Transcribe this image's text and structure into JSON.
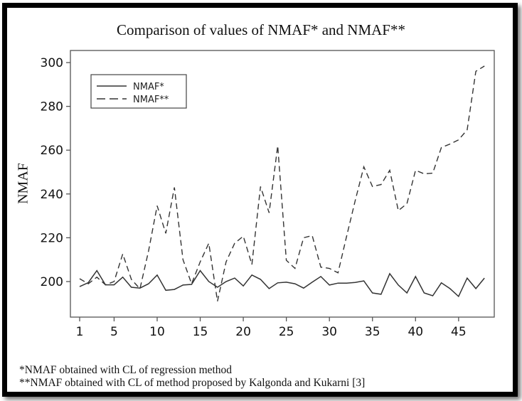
{
  "chart_data": {
    "type": "line",
    "title": "Comparison of values of NMAF* and NMAF**",
    "xlabel": "",
    "ylabel": "NMAF",
    "x": [
      1,
      2,
      3,
      4,
      5,
      6,
      7,
      8,
      9,
      10,
      11,
      12,
      13,
      14,
      15,
      16,
      17,
      18,
      19,
      20,
      21,
      22,
      23,
      24,
      25,
      26,
      27,
      28,
      29,
      30,
      31,
      32,
      33,
      34,
      35,
      36,
      37,
      38,
      39,
      40,
      41,
      42,
      43,
      44,
      45,
      46,
      47,
      48
    ],
    "xticks": [
      1,
      5,
      10,
      15,
      20,
      25,
      30,
      35,
      40,
      45
    ],
    "xtick_labels": [
      "1",
      "5",
      "10",
      "15",
      "20",
      "25",
      "30",
      "35",
      "40",
      "45"
    ],
    "yticks": [
      200,
      220,
      240,
      260,
      280,
      300
    ],
    "ytick_labels": [
      "200",
      "220",
      "240",
      "260",
      "280",
      "300"
    ],
    "xlim": [
      0,
      49
    ],
    "ylim": [
      184,
      305.5
    ],
    "grid": false,
    "legend_position": "top-left",
    "series": [
      {
        "name": "NMAF*",
        "style": "solid",
        "values": [
          197.7,
          199.5,
          205,
          198.5,
          198.5,
          202,
          197.4,
          197,
          199,
          203,
          196,
          196.4,
          198.4,
          198.7,
          205,
          200,
          197.4,
          200,
          201.6,
          198,
          203,
          201,
          196.8,
          199.4,
          199.7,
          199,
          197,
          199.7,
          202.3,
          198.4,
          199.3,
          199.3,
          199.6,
          200.3,
          194.8,
          194.2,
          203.6,
          198.4,
          194.8,
          202.3,
          194.8,
          193.5,
          199.4,
          196.8,
          193.2,
          201.6,
          196.8,
          201.6
        ]
      },
      {
        "name": "NMAF**",
        "style": "dashed",
        "values": [
          201.3,
          199,
          202,
          198.5,
          200,
          212.6,
          201,
          196.7,
          214,
          234.6,
          222,
          243,
          210,
          199,
          209,
          217.5,
          191,
          209,
          217.5,
          220.7,
          207.8,
          243.4,
          231.4,
          262,
          209.7,
          206,
          220,
          221,
          206.6,
          206,
          204,
          220.7,
          237,
          252.4,
          243.4,
          244.3,
          250.8,
          232.4,
          235.6,
          250.8,
          249.2,
          249.5,
          261.2,
          262.8,
          264.7,
          269.3,
          296,
          298.4
        ]
      }
    ],
    "footnotes": [
      "*NMAF obtained with CL of regression method",
      "**NMAF obtained with CL of method proposed by Kalgonda and Kukarni [3]"
    ]
  },
  "colors": {
    "line": "#333333",
    "axis": "#555555",
    "frame": "#000000"
  }
}
